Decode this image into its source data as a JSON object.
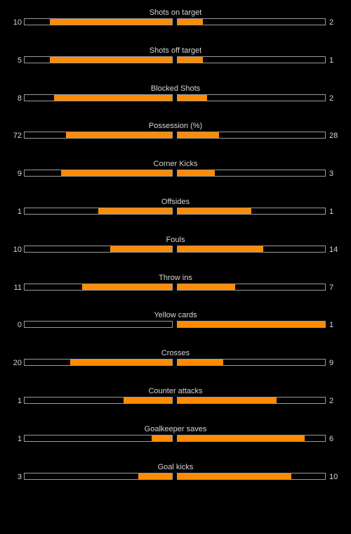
{
  "colors": {
    "background": "#000000",
    "bar_fill": "#ff8c00",
    "bar_border": "#9a9a9a",
    "text": "#d6d6d6"
  },
  "chart_data": {
    "type": "bar",
    "orientation": "horizontal-diverging",
    "categories": [
      "Shots on target",
      "Shots off target",
      "Blocked Shots",
      "Possession (%)",
      "Corner Kicks",
      "Offsides",
      "Fouls",
      "Throw ins",
      "Yellow cards",
      "Crosses",
      "Counter attacks",
      "Goalkeeper saves",
      "Goal kicks"
    ],
    "series": [
      {
        "values": [
          10,
          5,
          8,
          72,
          9,
          1,
          10,
          11,
          0,
          20,
          1,
          1,
          3
        ]
      },
      {
        "values": [
          2,
          1,
          2,
          28,
          3,
          1,
          14,
          7,
          1,
          9,
          2,
          6,
          10
        ]
      }
    ],
    "fill_fraction": [
      [
        0.83,
        0.83,
        0.8,
        0.72,
        0.75,
        0.5,
        0.42,
        0.61,
        0.0,
        0.69,
        0.33,
        0.14,
        0.23
      ],
      [
        0.17,
        0.17,
        0.2,
        0.28,
        0.25,
        0.5,
        0.58,
        0.39,
        1.0,
        0.31,
        0.67,
        0.86,
        0.77
      ]
    ],
    "legend": false,
    "grid": false
  }
}
